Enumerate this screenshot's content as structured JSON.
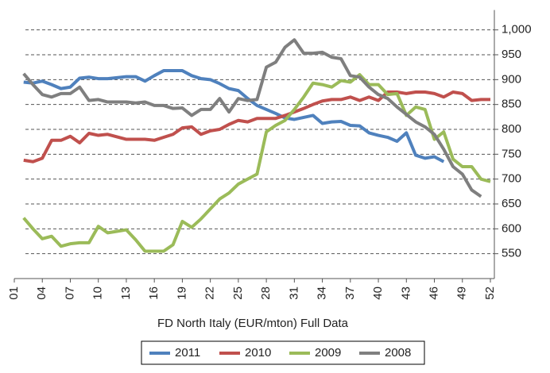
{
  "chart_data": {
    "type": "line",
    "x_label": "FD North Italy (EUR/mton) Full Data",
    "x": [
      2,
      3,
      4,
      5,
      6,
      7,
      8,
      9,
      10,
      11,
      12,
      13,
      14,
      15,
      16,
      17,
      18,
      19,
      20,
      21,
      22,
      23,
      24,
      25,
      26,
      27,
      28,
      29,
      30,
      31,
      32,
      33,
      34,
      35,
      36,
      37,
      38,
      39,
      40,
      41,
      42,
      43,
      44,
      45,
      46,
      47,
      48,
      49,
      50,
      51,
      52
    ],
    "series": [
      {
        "name": "2011",
        "color": "#4f81bd",
        "values": [
          895,
          893,
          897,
          890,
          882,
          885,
          903,
          905,
          902,
          902,
          904,
          906,
          906,
          897,
          908,
          918,
          918,
          918,
          908,
          902,
          900,
          892,
          882,
          878,
          862,
          848,
          840,
          832,
          823,
          820,
          824,
          828,
          812,
          815,
          816,
          808,
          807,
          793,
          788,
          784,
          776,
          793,
          748,
          742,
          745,
          735,
          null,
          null,
          null,
          null,
          null
        ]
      },
      {
        "name": "2010",
        "color": "#c0504d",
        "values": [
          738,
          735,
          742,
          778,
          778,
          786,
          773,
          792,
          788,
          790,
          785,
          780,
          780,
          780,
          778,
          784,
          790,
          803,
          805,
          790,
          797,
          800,
          810,
          818,
          815,
          822,
          822,
          822,
          828,
          835,
          842,
          850,
          857,
          860,
          860,
          865,
          858,
          865,
          858,
          875,
          875,
          872,
          875,
          875,
          872,
          865,
          875,
          872,
          858,
          860,
          860
        ]
      },
      {
        "name": "2009",
        "color": "#9bbb59",
        "values": [
          622,
          600,
          580,
          585,
          565,
          570,
          572,
          572,
          605,
          592,
          595,
          598,
          578,
          555,
          555,
          555,
          568,
          615,
          603,
          620,
          640,
          660,
          672,
          690,
          700,
          710,
          795,
          808,
          818,
          840,
          865,
          893,
          890,
          885,
          898,
          895,
          910,
          890,
          890,
          870,
          872,
          828,
          845,
          840,
          780,
          795,
          740,
          725,
          725,
          700,
          695
        ]
      },
      {
        "name": "2008",
        "color": "#7f7f7f",
        "values": [
          912,
          890,
          870,
          865,
          872,
          872,
          885,
          858,
          860,
          855,
          855,
          855,
          853,
          855,
          848,
          848,
          842,
          843,
          828,
          840,
          840,
          862,
          835,
          862,
          858,
          860,
          925,
          935,
          965,
          980,
          953,
          953,
          955,
          945,
          942,
          908,
          905,
          885,
          870,
          862,
          845,
          830,
          815,
          805,
          790,
          760,
          725,
          710,
          678,
          665,
          null
        ]
      }
    ],
    "xlim": [
      1,
      52
    ],
    "xticks": [
      {
        "value": 1,
        "label": "01"
      },
      {
        "value": 4,
        "label": "04"
      },
      {
        "value": 7,
        "label": "07"
      },
      {
        "value": 10,
        "label": "10"
      },
      {
        "value": 13,
        "label": "13"
      },
      {
        "value": 16,
        "label": "16"
      },
      {
        "value": 19,
        "label": "19"
      },
      {
        "value": 22,
        "label": "22"
      },
      {
        "value": 25,
        "label": "25"
      },
      {
        "value": 28,
        "label": "28"
      },
      {
        "value": 31,
        "label": "31"
      },
      {
        "value": 34,
        "label": "34"
      },
      {
        "value": 37,
        "label": "37"
      },
      {
        "value": 40,
        "label": "40"
      },
      {
        "value": 43,
        "label": "43"
      },
      {
        "value": 46,
        "label": "46"
      },
      {
        "value": 49,
        "label": "49"
      },
      {
        "value": 52,
        "label": "52"
      }
    ],
    "ylim": [
      500,
      1040
    ],
    "yticks": [
      550,
      600,
      650,
      700,
      750,
      800,
      850,
      900,
      950,
      {
        "value": 1000,
        "label": "1,000"
      }
    ],
    "grid": true,
    "legend": "bottom"
  }
}
